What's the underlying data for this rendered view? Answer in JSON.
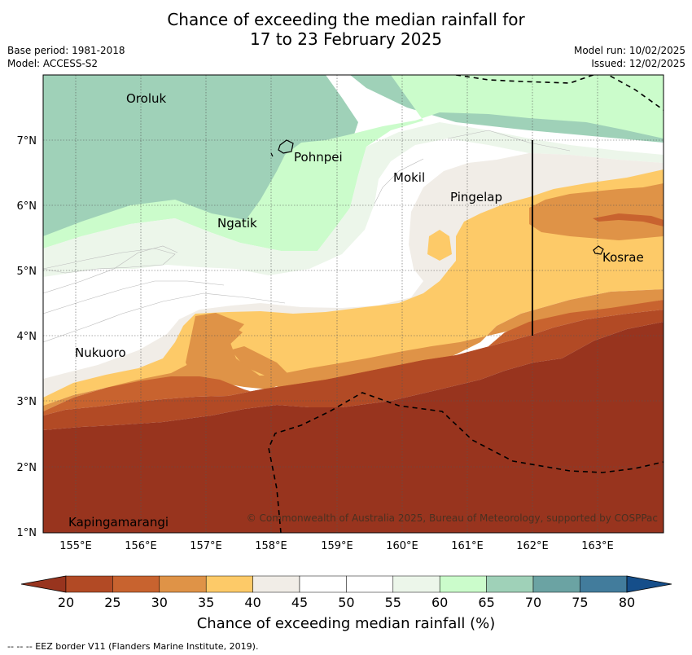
{
  "title": {
    "line1": "Chance of exceeding the median rainfall for",
    "line2": "17 to 23 February 2025"
  },
  "meta_left": {
    "base_period": "Base period: 1981-2018",
    "model": "Model: ACCESS-S2"
  },
  "meta_right": {
    "model_run": "Model run: 10/02/2025",
    "issued": "Issued: 12/02/2025"
  },
  "map": {
    "lon_ticks": [
      "155°E",
      "156°E",
      "157°E",
      "158°E",
      "159°E",
      "160°E",
      "161°E",
      "162°E",
      "163°E"
    ],
    "lat_ticks": [
      "7°N",
      "6°N",
      "5°N",
      "4°N",
      "3°N",
      "2°N",
      "1°N"
    ],
    "places": [
      {
        "name": "Oroluk"
      },
      {
        "name": "Pohnpei"
      },
      {
        "name": "Mokil"
      },
      {
        "name": "Pingelap"
      },
      {
        "name": "Ngatik"
      },
      {
        "name": "Kosrae"
      },
      {
        "name": "Nukuoro"
      },
      {
        "name": "Kapingamarangi"
      }
    ],
    "copyright": "© Commonwealth of Australia 2025, Bureau of Meteorology, supported by COSPPac",
    "colors": {
      "p20": "#98341e",
      "p25": "#b24a25",
      "p30": "#c8632f",
      "p35": "#df9347",
      "p40": "#fdca68",
      "p45": "#f1ede7",
      "p50": "#ffffff",
      "p55": "#ffffff",
      "p60": "#ecf6ea",
      "p65": "#cbfccb",
      "p70": "#9fd1b8",
      "p75": "#6ba3a3",
      "p80": "#427c9c",
      "p80plus": "#154e8a"
    }
  },
  "colorbar": {
    "labels": [
      "20",
      "25",
      "30",
      "35",
      "40",
      "45",
      "50",
      "55",
      "60",
      "65",
      "70",
      "75",
      "80"
    ],
    "title": "Chance of exceeding median rainfall (%)"
  },
  "footnote": "--  --  -- EEZ border V11 (Flanders Marine Institute, 2019)."
}
